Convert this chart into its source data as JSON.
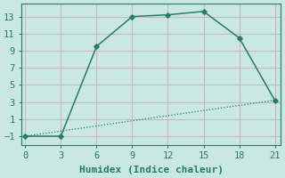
{
  "xlabel": "Humidex (Indice chaleur)",
  "line1_x": [
    0,
    3,
    6,
    9,
    12,
    15,
    18,
    21
  ],
  "line1_y": [
    -1,
    -1,
    9.5,
    13,
    13.2,
    13.6,
    10.5,
    3.2
  ],
  "line2_x": [
    0,
    21
  ],
  "line2_y": [
    -1,
    3.2
  ],
  "line_color": "#2a7a6a",
  "bg_color": "#c8e8e0",
  "grid_color": "#c8b8c0",
  "xlim": [
    -0.3,
    21.5
  ],
  "ylim": [
    -2.0,
    14.5
  ],
  "xticks": [
    0,
    3,
    6,
    9,
    12,
    15,
    18,
    21
  ],
  "yticks": [
    -1,
    1,
    3,
    5,
    7,
    9,
    11,
    13
  ],
  "label_fontsize": 8,
  "tick_fontsize": 7.5
}
